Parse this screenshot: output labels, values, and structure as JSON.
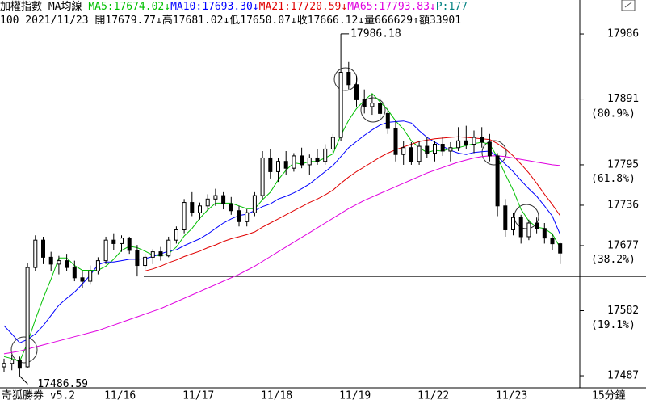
{
  "chart_data": {
    "type": "candlestick",
    "title": "加權指數 MA均線",
    "info": "100 2021/11/23 開17679.77↓高17681.02↓低17650.07↓收17666.12↓量666629↑額33901",
    "extra_legend": "P:177",
    "extra_legend_color": "#008080",
    "footer": "奇狐勝券 v5.2",
    "timeframe": "15分鐘",
    "up_color": "#ffffff",
    "down_color": "#000000",
    "categories": [
      null,
      null,
      null,
      null,
      null,
      null,
      null,
      null,
      null,
      null,
      null,
      null,
      null,
      "11/16",
      null,
      null,
      null,
      null,
      null,
      null,
      null,
      null,
      null,
      "11/17",
      null,
      null,
      null,
      null,
      null,
      null,
      null,
      null,
      null,
      "11/18",
      null,
      null,
      null,
      null,
      null,
      null,
      null,
      null,
      null,
      "11/19",
      null,
      null,
      null,
      null,
      null,
      null,
      null,
      null,
      null,
      "11/22",
      null,
      null,
      null,
      null,
      null,
      null,
      null,
      null,
      null,
      "11/23",
      null,
      null,
      null,
      null,
      null,
      null,
      null,
      null
    ],
    "open": [
      17500,
      17505,
      17510,
      17500,
      17645,
      17685,
      17660,
      17650,
      17655,
      17645,
      17630,
      17625,
      17640,
      17655,
      17685,
      17680,
      17688,
      17670,
      17648,
      17660,
      17668,
      17662,
      17685,
      17700,
      17740,
      17725,
      17735,
      17745,
      17750,
      17738,
      17728,
      17712,
      17725,
      17750,
      17805,
      17785,
      17800,
      17790,
      17808,
      17795,
      17805,
      17800,
      17818,
      17835,
      17930,
      17912,
      17890,
      17880,
      17885,
      17870,
      17848,
      17810,
      17820,
      17800,
      17822,
      17812,
      17825,
      17815,
      17820,
      17830,
      17825,
      17835,
      17828,
      17808,
      17735,
      17700,
      17718,
      17690,
      17710,
      17702,
      17688,
      17679.77
    ],
    "high": [
      17512,
      17518,
      17515,
      17652,
      17692,
      17690,
      17668,
      17662,
      17665,
      17655,
      17640,
      17648,
      17660,
      17690,
      17695,
      17692,
      17690,
      17678,
      17665,
      17672,
      17675,
      17690,
      17705,
      17745,
      17755,
      17740,
      17752,
      17760,
      17755,
      17748,
      17735,
      17730,
      17755,
      17815,
      17818,
      17805,
      17815,
      17812,
      17820,
      17810,
      17818,
      17825,
      17840,
      17986.18,
      17945,
      17925,
      17905,
      17898,
      17892,
      17878,
      17860,
      17830,
      17828,
      17830,
      17835,
      17830,
      17835,
      17828,
      17850,
      17852,
      17845,
      17850,
      17840,
      17812,
      17745,
      17725,
      17722,
      17715,
      17718,
      17710,
      17695,
      17681.02
    ],
    "low": [
      17492,
      17495,
      17486.59,
      17498,
      17640,
      17650,
      17640,
      17635,
      17640,
      17625,
      17615,
      17620,
      17635,
      17650,
      17670,
      17668,
      17665,
      17632,
      17642,
      17650,
      17655,
      17660,
      17680,
      17695,
      17720,
      17715,
      17728,
      17735,
      17730,
      17722,
      17705,
      17705,
      17720,
      17745,
      17775,
      17770,
      17780,
      17785,
      17790,
      17780,
      17795,
      17795,
      17812,
      17830,
      17905,
      17880,
      17870,
      17868,
      17860,
      17840,
      17800,
      17795,
      17795,
      17795,
      17805,
      17800,
      17808,
      17800,
      17815,
      17818,
      17812,
      17820,
      17800,
      17720,
      17690,
      17692,
      17680,
      17685,
      17695,
      17680,
      17670,
      17650.07
    ],
    "close": [
      17505,
      17510,
      17498,
      17645,
      17685,
      17660,
      17650,
      17655,
      17645,
      17630,
      17625,
      17640,
      17655,
      17685,
      17680,
      17688,
      17670,
      17648,
      17660,
      17668,
      17662,
      17685,
      17700,
      17740,
      17725,
      17735,
      17745,
      17750,
      17738,
      17728,
      17712,
      17725,
      17750,
      17805,
      17785,
      17800,
      17790,
      17808,
      17795,
      17805,
      17800,
      17818,
      17835,
      17930,
      17912,
      17890,
      17880,
      17885,
      17870,
      17848,
      17810,
      17820,
      17800,
      17822,
      17812,
      17825,
      17815,
      17820,
      17830,
      17825,
      17835,
      17828,
      17808,
      17735,
      17700,
      17718,
      17690,
      17710,
      17702,
      17688,
      17679.77,
      17666.12
    ],
    "series": [
      {
        "name": "MA5:17674.02↓",
        "color": "#00c000",
        "values": [
          17515,
          17512,
          17508,
          17535,
          17569,
          17600,
          17628,
          17659,
          17659,
          17648,
          17641,
          17641,
          17641,
          17647,
          17657,
          17670,
          17676,
          17674,
          17669,
          17663,
          17662,
          17665,
          17675,
          17691,
          17702,
          17717,
          17729,
          17739,
          17739,
          17739,
          17735,
          17731,
          17731,
          17744,
          17755,
          17773,
          17787,
          17798,
          17796,
          17800,
          17800,
          17805,
          17811,
          17838,
          17860,
          17877,
          17889,
          17899,
          17887,
          17875,
          17859,
          17847,
          17830,
          17820,
          17813,
          17816,
          17815,
          17819,
          17820,
          17823,
          17826,
          17828,
          17825,
          17806,
          17781,
          17758,
          17730,
          17713,
          17704,
          17702,
          17694,
          17674.02
        ]
      },
      {
        "name": "MA10:17693.30↓",
        "color": "#0000ff",
        "values": [
          17560,
          17548,
          17535,
          17540,
          17548,
          17560,
          17575,
          17590,
          17600,
          17609,
          17621,
          17634,
          17649,
          17653,
          17653,
          17655,
          17657,
          17657,
          17658,
          17661,
          17665,
          17669,
          17671,
          17677,
          17682,
          17687,
          17694,
          17702,
          17710,
          17716,
          17721,
          17723,
          17728,
          17734,
          17738,
          17745,
          17749,
          17754,
          17760,
          17767,
          17776,
          17785,
          17794,
          17807,
          17820,
          17829,
          17838,
          17846,
          17853,
          17857,
          17858,
          17859,
          17856,
          17845,
          17835,
          17828,
          17822,
          17816,
          17812,
          17810,
          17813,
          17814,
          17815,
          17807,
          17796,
          17785,
          17772,
          17760,
          17749,
          17735,
          17720,
          17693.3
        ]
      },
      {
        "name": "MA21:17720.59↓",
        "color": "#e00000",
        "values": [
          null,
          null,
          null,
          null,
          null,
          null,
          null,
          null,
          null,
          null,
          null,
          null,
          null,
          null,
          null,
          null,
          null,
          null,
          17640,
          17643,
          17647,
          17652,
          17656,
          17661,
          17665,
          17669,
          17674,
          17678,
          17683,
          17687,
          17690,
          17693,
          17697,
          17704,
          17710,
          17716,
          17722,
          17728,
          17734,
          17740,
          17745,
          17751,
          17758,
          17768,
          17777,
          17785,
          17792,
          17799,
          17806,
          17812,
          17817,
          17821,
          17825,
          17829,
          17831,
          17833,
          17834,
          17835,
          17836,
          17835,
          17834,
          17833,
          17832,
          17826,
          17818,
          17808,
          17796,
          17783,
          17768,
          17752,
          17737,
          17720.59
        ]
      },
      {
        "name": "MA65:17793.83↓",
        "color": "#e000e0",
        "values": [
          17519,
          17521,
          17523,
          17526,
          17529,
          17532,
          17535,
          17538,
          17541,
          17544,
          17547,
          17550,
          17553,
          17557,
          17561,
          17565,
          17569,
          17573,
          17577,
          17581,
          17585,
          17590,
          17595,
          17600,
          17605,
          17610,
          17615,
          17620,
          17625,
          17630,
          17635,
          17641,
          17647,
          17654,
          17661,
          17668,
          17675,
          17682,
          17689,
          17696,
          17703,
          17710,
          17717,
          17724,
          17731,
          17737,
          17743,
          17748,
          17753,
          17758,
          17763,
          17768,
          17773,
          17778,
          17783,
          17787,
          17791,
          17795,
          17799,
          17802,
          17805,
          17807,
          17808,
          17808,
          17807,
          17805,
          17803,
          17801,
          17799,
          17797,
          17795,
          17793.83
        ]
      }
    ],
    "ylim": [
      17471.7,
      17994.3
    ],
    "yticks": [
      17487,
      17582,
      17677,
      17736,
      17795,
      17891,
      17986
    ],
    "ratio_labels": [
      {
        "value": 19.1,
        "label": "(19.1%)"
      },
      {
        "value": 38.2,
        "label": "(38.2%)"
      },
      {
        "value": 61.8,
        "label": "(61.8%)"
      },
      {
        "value": 80.9,
        "label": "(80.9%)"
      }
    ],
    "hline": 17632
  }
}
